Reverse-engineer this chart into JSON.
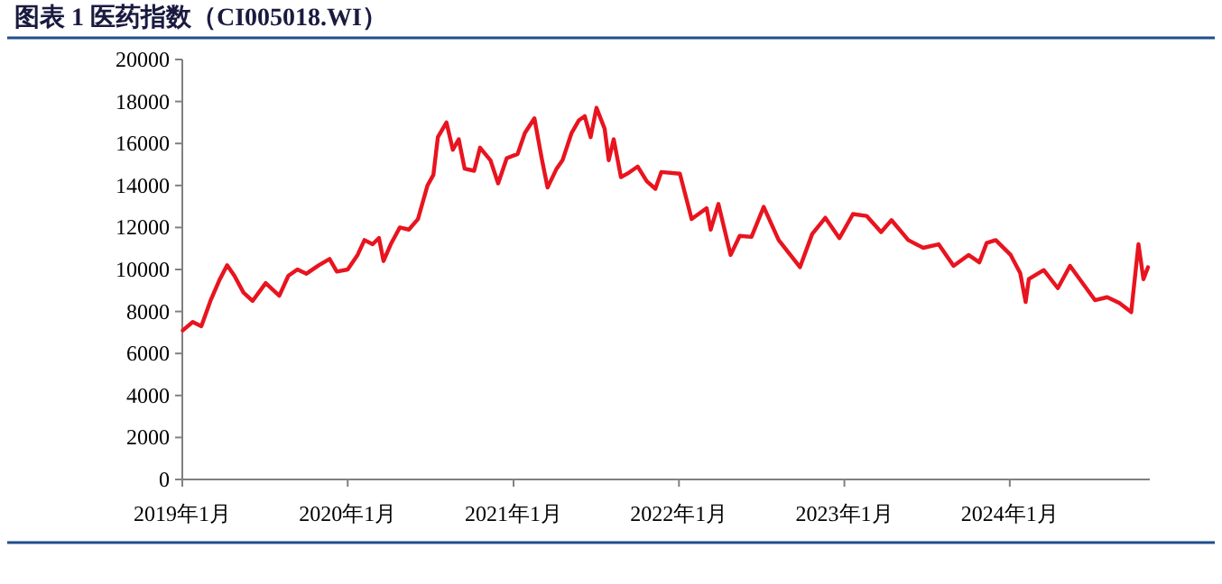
{
  "chart_data": {
    "type": "line",
    "title": "图表 1 医药指数（CI005018.WI）",
    "x": [
      "2019-01-02",
      "2019-01-24",
      "2019-02-12",
      "2019-03-04",
      "2019-03-24",
      "2019-04-10",
      "2019-04-26",
      "2019-05-16",
      "2019-06-05",
      "2019-07-04",
      "2019-08-03",
      "2019-08-23",
      "2019-09-12",
      "2019-10-02",
      "2019-10-29",
      "2019-11-22",
      "2019-12-08",
      "2020-01-01",
      "2020-01-23",
      "2020-02-07",
      "2020-02-25",
      "2020-03-10",
      "2020-03-20",
      "2020-04-05",
      "2020-04-25",
      "2020-05-15",
      "2020-06-04",
      "2020-06-25",
      "2020-07-08",
      "2020-07-18",
      "2020-08-06",
      "2020-08-20",
      "2020-09-02",
      "2020-09-15",
      "2020-10-06",
      "2020-10-19",
      "2020-11-11",
      "2020-11-28",
      "2020-12-17",
      "2021-01-10",
      "2021-01-26",
      "2021-02-16",
      "2021-03-04",
      "2021-03-17",
      "2021-04-06",
      "2021-04-19",
      "2021-05-09",
      "2021-05-25",
      "2021-06-07",
      "2021-06-20",
      "2021-07-03",
      "2021-07-21",
      "2021-07-30",
      "2021-08-10",
      "2021-08-26",
      "2021-09-12",
      "2021-10-02",
      "2021-10-22",
      "2021-11-10",
      "2021-11-23",
      "2022-01-03",
      "2022-01-29",
      "2022-03-03",
      "2022-03-12",
      "2022-03-29",
      "2022-04-25",
      "2022-05-15",
      "2022-06-10",
      "2022-07-07",
      "2022-08-09",
      "2022-09-25",
      "2022-10-22",
      "2022-11-20",
      "2022-12-21",
      "2023-01-20",
      "2023-02-19",
      "2023-03-23",
      "2023-04-15",
      "2023-05-22",
      "2023-06-24",
      "2023-07-28",
      "2023-08-30",
      "2023-10-02",
      "2023-10-26",
      "2023-11-11",
      "2023-12-01",
      "2024-01-03",
      "2024-01-24",
      "2024-02-05",
      "2024-02-12",
      "2024-03-16",
      "2024-04-16",
      "2024-05-13",
      "2024-06-08",
      "2024-07-07",
      "2024-08-03",
      "2024-08-30",
      "2024-09-25",
      "2024-10-11",
      "2024-10-22",
      "2024-11-01"
    ],
    "series": [
      {
        "color": "#e8141f",
        "values": [
          7100,
          7500,
          7300,
          8500,
          9500,
          10200,
          9700,
          8900,
          8500,
          9350,
          8750,
          9700,
          10000,
          9800,
          10200,
          10500,
          9900,
          10000,
          10700,
          11400,
          11200,
          11500,
          10400,
          11200,
          12000,
          11900,
          12400,
          14000,
          14500,
          16300,
          17000,
          15700,
          16200,
          14800,
          14700,
          15800,
          15200,
          14100,
          15300,
          15500,
          16500,
          17200,
          15300,
          13900,
          14800,
          15200,
          16500,
          17100,
          17300,
          16300,
          17700,
          16700,
          15200,
          16200,
          14400,
          14600,
          14900,
          14200,
          13840,
          14640,
          14560,
          12400,
          12920,
          11890,
          13120,
          10690,
          11600,
          11550,
          12980,
          11400,
          10110,
          11690,
          12460,
          11490,
          12640,
          12550,
          11780,
          12350,
          11400,
          11030,
          11200,
          10170,
          10690,
          10340,
          11260,
          11400,
          10690,
          9830,
          8450,
          9540,
          9970,
          9110,
          10170,
          9400,
          8540,
          8680,
          8400,
          7970,
          11200,
          9540,
          10110
        ]
      }
    ],
    "xlim": [
      "2019-01-01",
      "2024-11-05"
    ],
    "xticks": [
      {
        "value": "2019-01-01",
        "label": "2019年1月"
      },
      {
        "value": "2020-01-01",
        "label": "2020年1月"
      },
      {
        "value": "2021-01-01",
        "label": "2021年1月"
      },
      {
        "value": "2022-01-01",
        "label": "2022年1月"
      },
      {
        "value": "2023-01-01",
        "label": "2023年1月"
      },
      {
        "value": "2024-01-01",
        "label": "2024年1月"
      }
    ],
    "ylim": [
      0,
      20000
    ],
    "yticks": [
      0,
      2000,
      4000,
      6000,
      8000,
      10000,
      12000,
      14000,
      16000,
      18000,
      20000
    ],
    "line_style": "solid"
  }
}
